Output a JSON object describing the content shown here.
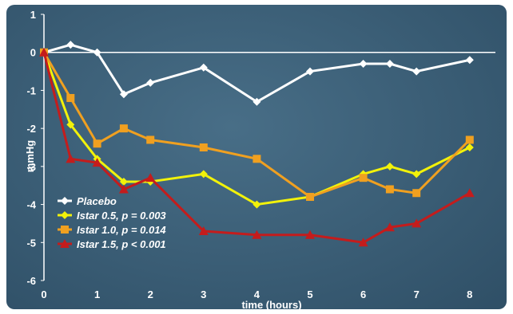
{
  "chart_data": {
    "type": "line",
    "title": "",
    "xlabel": "time (hours)",
    "ylabel": "mmHg",
    "xlim": [
      0,
      8.4
    ],
    "ylim": [
      -6,
      1
    ],
    "x_ticks": [
      0,
      1,
      2,
      3,
      4,
      5,
      6,
      7,
      8
    ],
    "y_ticks": [
      1,
      0,
      -1,
      -2,
      -3,
      -4,
      -5,
      -6
    ],
    "grid": false,
    "legend_position": "bottom-left",
    "series": [
      {
        "name": "Placebo",
        "color": "#ffffff",
        "marker": "diamond",
        "x": [
          0,
          0.5,
          1,
          1.5,
          2,
          3,
          4,
          5,
          6,
          6.5,
          7,
          8
        ],
        "y": [
          0,
          0.2,
          0,
          -1.1,
          -0.8,
          -0.4,
          -1.3,
          -0.5,
          -0.3,
          -0.3,
          -0.5,
          -0.2
        ]
      },
      {
        "name": "Istar 0.5, p = 0.003",
        "color": "#f2f20a",
        "marker": "diamond",
        "x": [
          0,
          0.5,
          1,
          1.5,
          2,
          3,
          4,
          5,
          6,
          6.5,
          7,
          8
        ],
        "y": [
          0,
          -1.9,
          -2.8,
          -3.4,
          -3.4,
          -3.2,
          -4.0,
          -3.8,
          -3.2,
          -3.0,
          -3.2,
          -2.5
        ]
      },
      {
        "name": "Istar 1.0, p = 0.014",
        "color": "#f0a020",
        "marker": "square",
        "x": [
          0,
          0.5,
          1,
          1.5,
          2,
          3,
          4,
          5,
          6,
          6.5,
          7,
          8
        ],
        "y": [
          0,
          -1.2,
          -2.4,
          -2.0,
          -2.3,
          -2.5,
          -2.8,
          -3.8,
          -3.3,
          -3.6,
          -3.7,
          -2.3
        ]
      },
      {
        "name": "Istar 1.5, p < 0.001",
        "color": "#c41c1c",
        "marker": "triangle",
        "x": [
          0,
          0.5,
          1,
          1.5,
          2,
          3,
          4,
          5,
          6,
          6.5,
          7,
          8
        ],
        "y": [
          0,
          -2.8,
          -2.9,
          -3.6,
          -3.3,
          -4.7,
          -4.8,
          -4.8,
          -5.0,
          -4.6,
          -4.5,
          -3.7
        ]
      }
    ]
  }
}
